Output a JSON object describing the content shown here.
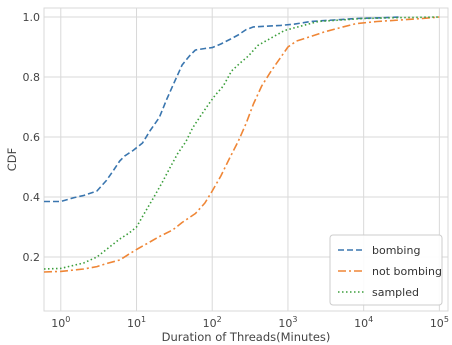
{
  "chart_data": {
    "type": "line",
    "xscale": "log",
    "xlabel": "Duration of Threads(Minutes)",
    "ylabel": "CDF",
    "xlim": [
      0.6,
      130000
    ],
    "ylim": [
      0.02,
      1.03
    ],
    "x_ticks": [
      {
        "value": 1,
        "label": "10^0"
      },
      {
        "value": 10,
        "label": "10^1"
      },
      {
        "value": 100,
        "label": "10^2"
      },
      {
        "value": 1000,
        "label": "10^3"
      },
      {
        "value": 10000,
        "label": "10^4"
      },
      {
        "value": 100000,
        "label": "10^5"
      }
    ],
    "y_ticks": [
      {
        "value": 0.2,
        "label": "0.2"
      },
      {
        "value": 0.4,
        "label": "0.4"
      },
      {
        "value": 0.6,
        "label": "0.6"
      },
      {
        "value": 0.8,
        "label": "0.8"
      },
      {
        "value": 1.0,
        "label": "1.0"
      }
    ],
    "grid": true,
    "legend_position": "bottom-right",
    "series": [
      {
        "name": "bombing",
        "color": "#3a76af",
        "dash": "dashed",
        "points": [
          [
            0.6,
            0.385
          ],
          [
            1,
            0.385
          ],
          [
            1.5,
            0.398
          ],
          [
            2,
            0.405
          ],
          [
            3,
            0.42
          ],
          [
            4,
            0.455
          ],
          [
            5,
            0.49
          ],
          [
            6,
            0.52
          ],
          [
            7,
            0.537
          ],
          [
            9,
            0.555
          ],
          [
            12,
            0.58
          ],
          [
            15,
            0.62
          ],
          [
            20,
            0.665
          ],
          [
            25,
            0.725
          ],
          [
            30,
            0.77
          ],
          [
            40,
            0.84
          ],
          [
            50,
            0.87
          ],
          [
            60,
            0.89
          ],
          [
            80,
            0.895
          ],
          [
            100,
            0.898
          ],
          [
            130,
            0.91
          ],
          [
            170,
            0.925
          ],
          [
            220,
            0.94
          ],
          [
            280,
            0.958
          ],
          [
            350,
            0.967
          ],
          [
            500,
            0.969
          ],
          [
            800,
            0.972
          ],
          [
            1200,
            0.976
          ],
          [
            2000,
            0.985
          ],
          [
            4000,
            0.99
          ],
          [
            8000,
            0.995
          ],
          [
            20000,
            0.998
          ],
          [
            30000,
            1.0
          ]
        ]
      },
      {
        "name": "not bombing",
        "color": "#ef8636",
        "dash": "dashdot",
        "points": [
          [
            0.6,
            0.15
          ],
          [
            1,
            0.152
          ],
          [
            2,
            0.16
          ],
          [
            3,
            0.168
          ],
          [
            4,
            0.178
          ],
          [
            6,
            0.19
          ],
          [
            8,
            0.21
          ],
          [
            10,
            0.225
          ],
          [
            15,
            0.25
          ],
          [
            20,
            0.268
          ],
          [
            30,
            0.29
          ],
          [
            40,
            0.315
          ],
          [
            60,
            0.345
          ],
          [
            80,
            0.38
          ],
          [
            100,
            0.42
          ],
          [
            130,
            0.47
          ],
          [
            170,
            0.53
          ],
          [
            220,
            0.585
          ],
          [
            280,
            0.645
          ],
          [
            350,
            0.71
          ],
          [
            450,
            0.77
          ],
          [
            600,
            0.82
          ],
          [
            800,
            0.865
          ],
          [
            1000,
            0.9
          ],
          [
            1300,
            0.92
          ],
          [
            2000,
            0.935
          ],
          [
            3000,
            0.95
          ],
          [
            5000,
            0.965
          ],
          [
            8000,
            0.978
          ],
          [
            15000,
            0.985
          ],
          [
            30000,
            0.99
          ],
          [
            60000,
            0.995
          ],
          [
            100000,
            1.0
          ]
        ]
      },
      {
        "name": "sampled",
        "color": "#3b9e3b",
        "dash": "dotted",
        "points": [
          [
            0.6,
            0.16
          ],
          [
            1,
            0.162
          ],
          [
            2,
            0.18
          ],
          [
            3,
            0.2
          ],
          [
            4,
            0.225
          ],
          [
            6,
            0.26
          ],
          [
            8,
            0.28
          ],
          [
            10,
            0.3
          ],
          [
            13,
            0.35
          ],
          [
            17,
            0.4
          ],
          [
            22,
            0.45
          ],
          [
            28,
            0.5
          ],
          [
            35,
            0.545
          ],
          [
            45,
            0.585
          ],
          [
            55,
            0.63
          ],
          [
            70,
            0.67
          ],
          [
            90,
            0.71
          ],
          [
            110,
            0.74
          ],
          [
            140,
            0.77
          ],
          [
            180,
            0.82
          ],
          [
            230,
            0.845
          ],
          [
            300,
            0.87
          ],
          [
            400,
            0.905
          ],
          [
            600,
            0.93
          ],
          [
            900,
            0.955
          ],
          [
            1500,
            0.97
          ],
          [
            2500,
            0.985
          ],
          [
            5000,
            0.99
          ],
          [
            10000,
            0.995
          ],
          [
            30000,
            0.998
          ],
          [
            100000,
            1.0
          ]
        ]
      }
    ]
  }
}
